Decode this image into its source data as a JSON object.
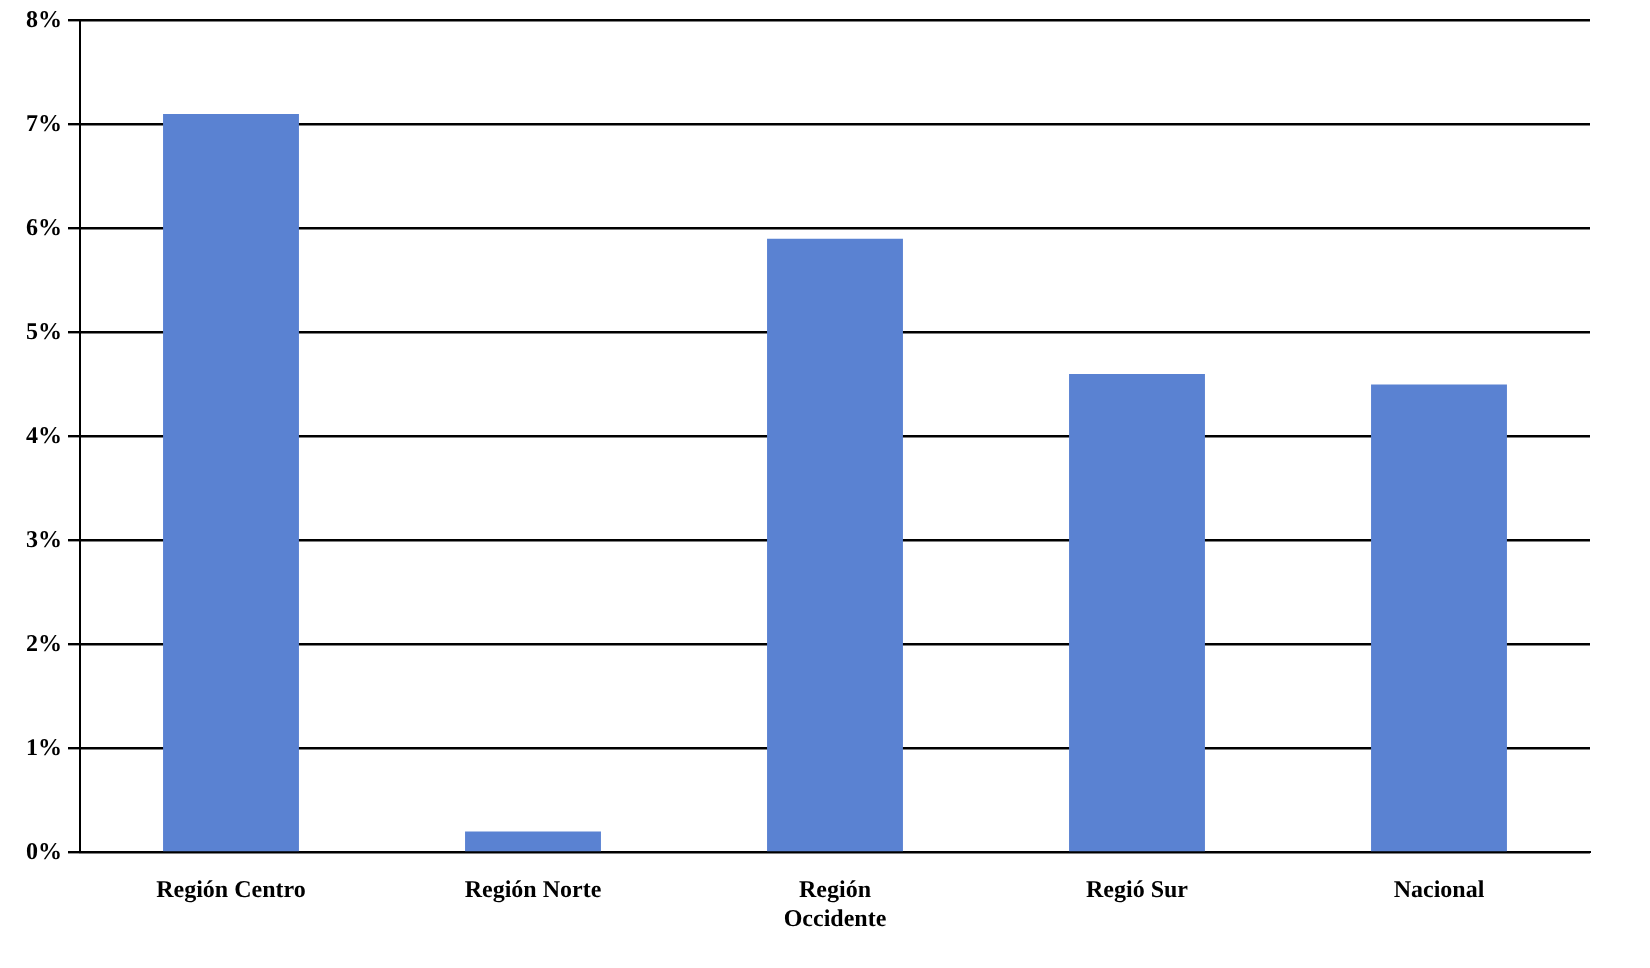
{
  "chart_data": {
    "type": "bar",
    "categories": [
      "Región Centro",
      "Región Norte",
      "Región Occidente",
      "Regió Sur",
      "Nacional"
    ],
    "values": [
      7.1,
      0.2,
      5.9,
      4.6,
      4.5
    ],
    "color": "#5a82d2",
    "ylim": [
      0,
      8
    ],
    "yticks": [
      {
        "value": 0,
        "label": "0%"
      },
      {
        "value": 1,
        "label": "1%"
      },
      {
        "value": 2,
        "label": "2%"
      },
      {
        "value": 3,
        "label": "3%"
      },
      {
        "value": 4,
        "label": "4%"
      },
      {
        "value": 5,
        "label": "5%"
      },
      {
        "value": 6,
        "label": "6%"
      },
      {
        "value": 7,
        "label": "7%"
      },
      {
        "value": 8,
        "label": "8%"
      }
    ],
    "grid": "y",
    "legend": false
  }
}
